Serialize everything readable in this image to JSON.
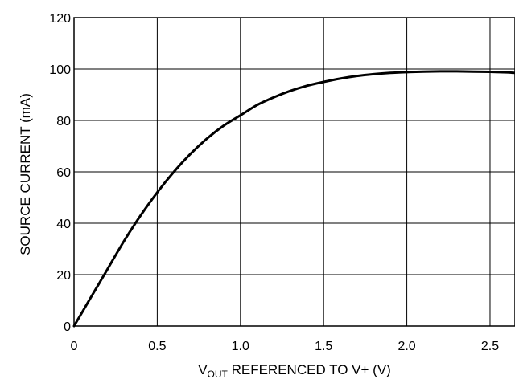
{
  "chart_data": {
    "type": "line",
    "title": "",
    "xlabel": {
      "main": "V",
      "sub": "OUT",
      "rest": " REFERENCED TO V+ (V)"
    },
    "ylabel": "SOURCE CURRENT (mA)",
    "xlim": [
      0,
      2.65
    ],
    "ylim": [
      0,
      120
    ],
    "grid": true,
    "x_ticks": [
      0,
      0.5,
      1.0,
      1.5,
      2.0,
      2.5
    ],
    "x_tick_labels": [
      "0",
      "0.5",
      "1.0",
      "1.5",
      "2.0",
      "2.5"
    ],
    "y_ticks": [
      0,
      20,
      40,
      60,
      80,
      100,
      120
    ],
    "y_tick_labels": [
      "0",
      "20",
      "40",
      "60",
      "80",
      "100",
      "120"
    ],
    "series": [
      {
        "x": [
          0,
          0.1,
          0.2,
          0.3,
          0.4,
          0.5,
          0.6,
          0.7,
          0.8,
          0.9,
          1.0,
          1.1,
          1.2,
          1.3,
          1.4,
          1.5,
          1.6,
          1.7,
          1.8,
          1.9,
          2.0,
          2.1,
          2.2,
          2.3,
          2.4,
          2.5,
          2.6,
          2.65
        ],
        "y": [
          0,
          11,
          22,
          33,
          43,
          52,
          60,
          67,
          73,
          78,
          82,
          86,
          89,
          91.5,
          93.5,
          95,
          96.3,
          97.3,
          98,
          98.5,
          98.8,
          99,
          99.1,
          99.1,
          99,
          98.9,
          98.7,
          98.5
        ]
      }
    ]
  }
}
